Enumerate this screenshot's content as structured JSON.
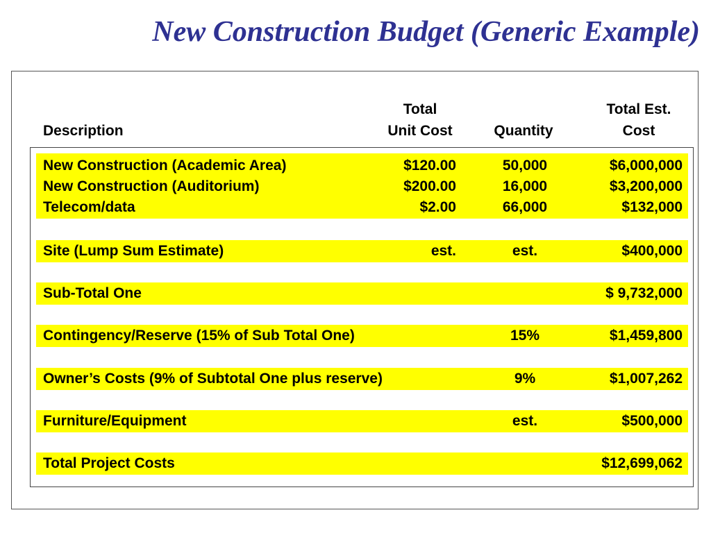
{
  "title": "New Construction Budget (Generic Example)",
  "headers": {
    "description": "Description",
    "unit_cost_line1": "Total",
    "unit_cost_line2": "Unit Cost",
    "quantity": "Quantity",
    "total_line1": "Total Est.",
    "total_line2": "Cost"
  },
  "rows": [
    {
      "description": "New Construction (Academic Area)",
      "unit_cost": "$120.00",
      "quantity": "50,000",
      "total": "$6,000,000"
    },
    {
      "description": "New Construction (Auditorium)",
      "unit_cost": "$200.00",
      "quantity": "16,000",
      "total": "$3,200,000"
    },
    {
      "description": "Telecom/data",
      "unit_cost": "$2.00",
      "quantity": "66,000",
      "total": "$132,000"
    },
    {
      "description": "Site (Lump Sum Estimate)",
      "unit_cost": "est.",
      "quantity": "est.",
      "total": "$400,000"
    },
    {
      "description": "Sub-Total One",
      "unit_cost": "",
      "quantity": "",
      "total": "$ 9,732,000"
    },
    {
      "description": "Contingency/Reserve (15% of Sub Total One)",
      "unit_cost": "",
      "quantity": "15%",
      "total": "$1,459,800"
    },
    {
      "description": "Owner’s Costs (9% of Subtotal One plus reserve)",
      "unit_cost": "",
      "quantity": "9%",
      "total": "$1,007,262"
    },
    {
      "description": "Furniture/Equipment",
      "unit_cost": "",
      "quantity": "est.",
      "total": "$500,000"
    },
    {
      "description": "Total Project Costs",
      "unit_cost": "",
      "quantity": "",
      "total": "$12,699,062"
    }
  ],
  "colors": {
    "title": "#2e3192",
    "highlight": "#ffff00"
  }
}
